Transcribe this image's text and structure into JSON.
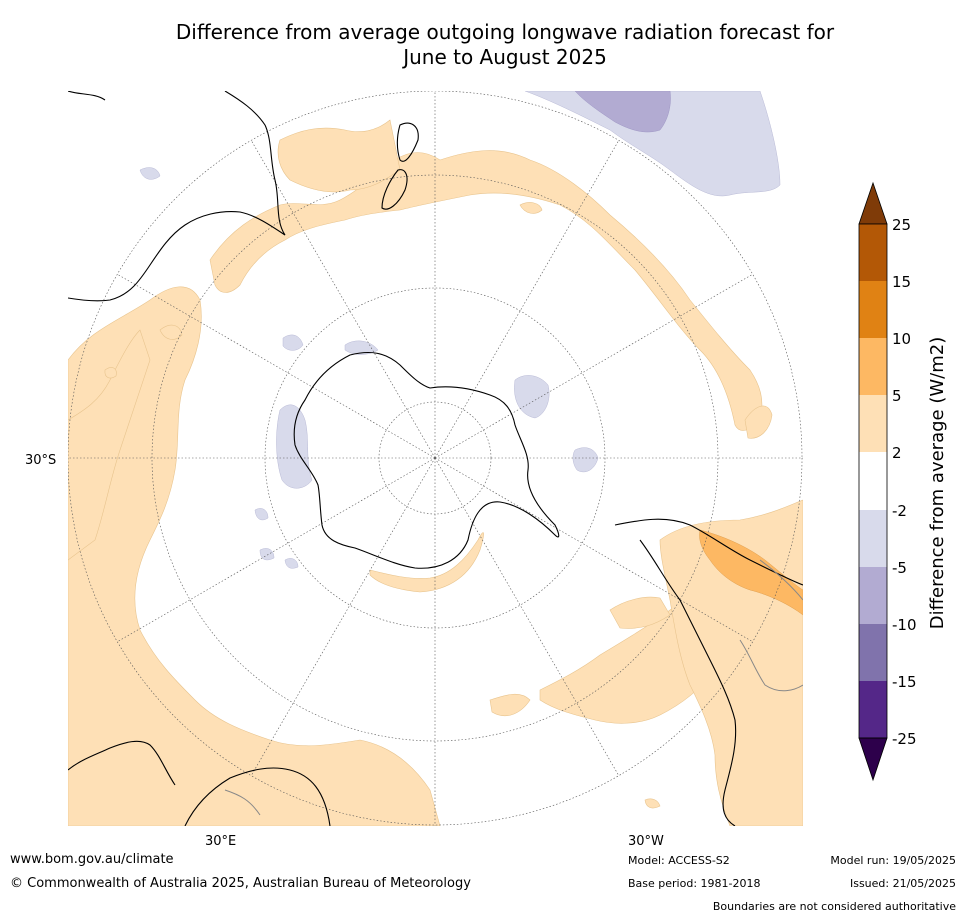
{
  "title": {
    "line1": "Difference from average outgoing longwave radiation forecast for",
    "line2": "June to August 2025"
  },
  "map": {
    "projection": "south polar stereographic",
    "lat_label": "30°S",
    "lon_labels": [
      "30°E",
      "30°W"
    ]
  },
  "colorbar": {
    "label": "Difference from average (W/m2)",
    "ticks": [
      "25",
      "15",
      "10",
      "5",
      "2",
      "-2",
      "-5",
      "-10",
      "-15",
      "-25"
    ],
    "colors": {
      "above_25": "#7f3b08",
      "15_to_25": "#b35806",
      "10_to_15": "#e08214",
      "5_to_10": "#fdb863",
      "2_to_5": "#fee0b6",
      "neutral": "#ffffff",
      "m2_to_m5": "#d8daeb",
      "m5_to_m10": "#b2abd2",
      "m10_to_m15": "#8073ac",
      "m15_to_m25": "#542788",
      "below_m25": "#2d004b"
    }
  },
  "footer": {
    "website": "www.bom.gov.au/climate",
    "copyright": "© Commonwealth of Australia 2025, Australian Bureau of Meteorology",
    "model": "Model: ACCESS-S2",
    "base_period": "Base period: 1981-2018",
    "model_run": "Model run: 19/05/2025",
    "issued": "Issued: 21/05/2025",
    "disclaimer": "Boundaries are not considered authoritative"
  }
}
